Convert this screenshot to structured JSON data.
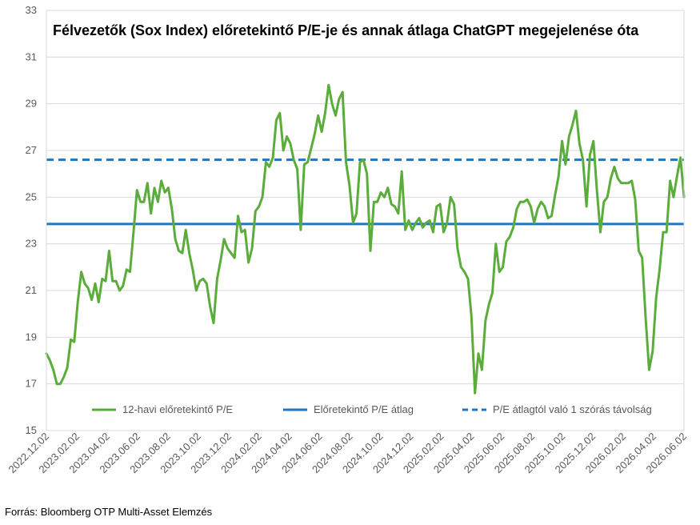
{
  "chart_data": {
    "type": "line",
    "title": "Félvezetők (Sox Index) előretekintő P/E-je és annak átlaga ChatGPT megejelenése óta",
    "ylim": [
      15,
      33
    ],
    "yticks": [
      "15",
      "17",
      "19",
      "21",
      "23",
      "25",
      "27",
      "29",
      "31",
      "33"
    ],
    "xticks": [
      "2022.12.02",
      "2023.02.02",
      "2023.04.02",
      "2023.06.02",
      "2023.08.02",
      "2023.10.02",
      "2023.12.02",
      "2024.02.02",
      "2024.04.02",
      "2024.06.02",
      "2024.08.02",
      "2024.10.02",
      "2024.12.02",
      "2025.02.02",
      "2025.04.02",
      "2025.06.02",
      "2025.08.02",
      "2025.10.02",
      "2025.12.02",
      "2026.02.02",
      "2026.04.02",
      "2026.06.02"
    ],
    "grid": true,
    "legend_position": "bottom",
    "series": [
      {
        "name": "12-havi előretekintő P/E",
        "color": "#5aad3a",
        "type": "line",
        "values": [
          18.3,
          18.0,
          17.6,
          17.0,
          17.0,
          17.3,
          17.7,
          18.9,
          18.8,
          20.5,
          21.8,
          21.3,
          21.1,
          20.6,
          21.3,
          20.5,
          21.5,
          21.4,
          22.7,
          21.4,
          21.4,
          21.0,
          21.2,
          21.9,
          21.8,
          23.5,
          25.3,
          24.8,
          24.8,
          25.6,
          24.3,
          25.4,
          24.8,
          25.7,
          25.2,
          25.4,
          24.5,
          23.2,
          22.7,
          22.6,
          23.6,
          22.6,
          21.9,
          21.0,
          21.4,
          21.5,
          21.3,
          20.3,
          19.6,
          21.5,
          22.3,
          23.2,
          22.8,
          22.6,
          22.4,
          24.2,
          23.5,
          23.6,
          22.2,
          22.8,
          24.4,
          24.6,
          25.0,
          26.5,
          26.3,
          26.7,
          28.3,
          28.6,
          27.0,
          27.6,
          27.3,
          26.6,
          26.2,
          23.6,
          26.4,
          26.5,
          27.1,
          27.7,
          28.5,
          27.8,
          28.6,
          29.8,
          29.0,
          28.5,
          29.2,
          29.5,
          26.5,
          25.5,
          23.9,
          24.3,
          26.5,
          26.6,
          26.0,
          22.7,
          24.8,
          24.8,
          25.2,
          25.0,
          25.4,
          24.7,
          24.6,
          24.3,
          26.1,
          23.6,
          24.0,
          23.6,
          23.9,
          24.1,
          23.7,
          23.9,
          24.0,
          23.5,
          24.6,
          24.7,
          23.5,
          23.9,
          25.0,
          24.7,
          22.8,
          22.0,
          21.8,
          21.5,
          19.9,
          16.6,
          18.3,
          17.6,
          19.7,
          20.4,
          20.9,
          23.0,
          21.8,
          22.0,
          23.1,
          23.3,
          23.7,
          24.5,
          24.8,
          24.8,
          24.9,
          24.6,
          23.9,
          24.5,
          24.8,
          24.6,
          24.1,
          24.2,
          25.1,
          25.9,
          27.4,
          26.4,
          27.6,
          28.1,
          28.7,
          27.3,
          26.6,
          24.6,
          26.8,
          27.4,
          25.3,
          23.5,
          24.8,
          25.0,
          25.8,
          26.3,
          25.8,
          25.6,
          25.6,
          25.6,
          25.7,
          24.9,
          22.7,
          22.4,
          19.8,
          17.6,
          18.4,
          20.7,
          21.9,
          23.5,
          23.5,
          25.7,
          25.0,
          25.9,
          26.7,
          25.0
        ]
      },
      {
        "name": "Előretekintő P/E átlag",
        "color": "#1f77c0",
        "type": "hline",
        "value": 23.85
      },
      {
        "name": "P/E átlagtól való 1 szórás távolság",
        "color": "#1f77c0",
        "type": "hline-dashed",
        "value": 26.6
      }
    ]
  },
  "source": "Forrás: Bloomberg OTP Multi-Asset Elemzés"
}
